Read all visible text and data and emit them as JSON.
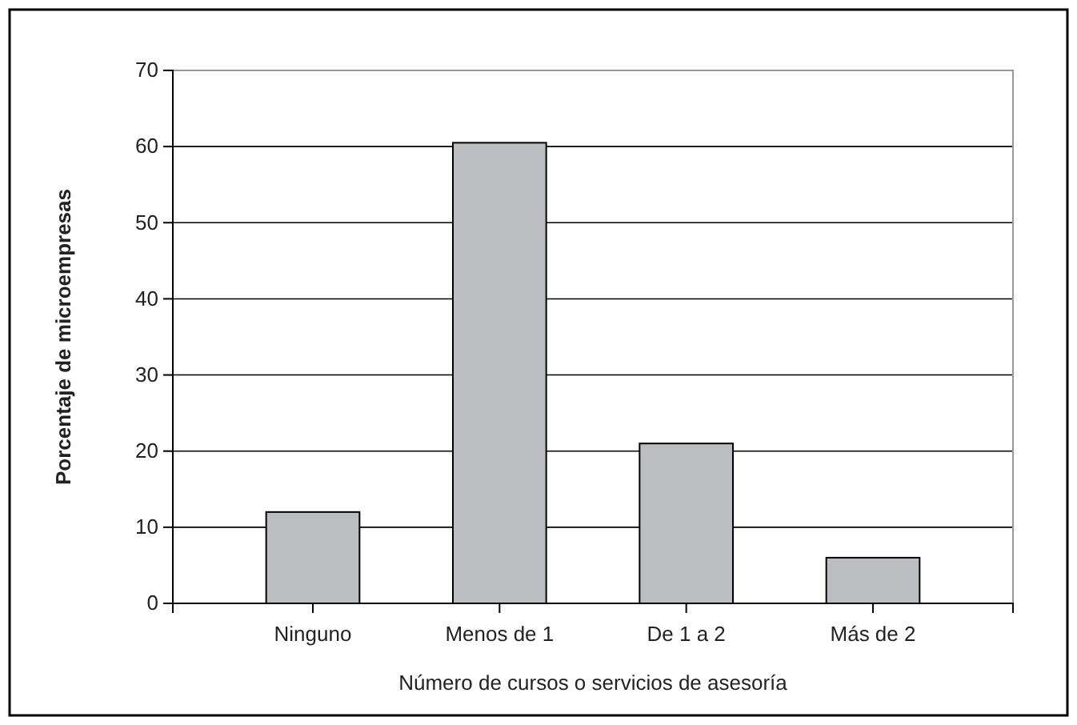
{
  "chart_data": {
    "type": "bar",
    "xlabel": "Número de cursos o servicios de asesoría",
    "ylabel": "Porcentaje de microempresas",
    "categories": [
      "Ninguno",
      "Menos de 1",
      "De 1 a 2",
      "Más de 2"
    ],
    "values": [
      12,
      60.5,
      21,
      6
    ],
    "color": "#bcbdc1",
    "ylim": [
      0,
      70
    ],
    "yticks": [
      0,
      10,
      20,
      30,
      40,
      50,
      60,
      70
    ],
    "grid": "y"
  }
}
